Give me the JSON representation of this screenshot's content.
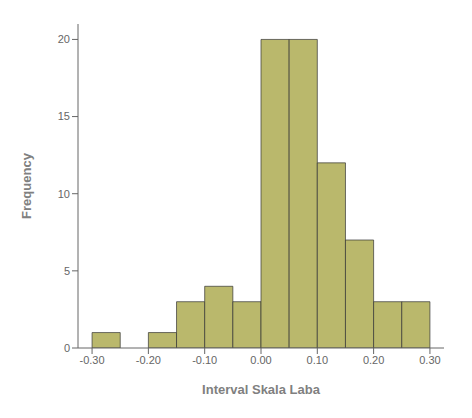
{
  "chart_data": {
    "type": "histogram",
    "xlabel": "Interval Skala Laba",
    "ylabel": "Frequency",
    "bins": [
      -0.3,
      -0.25,
      -0.2,
      -0.15,
      -0.1,
      -0.05,
      0.0,
      0.05,
      0.1,
      0.15,
      0.2,
      0.25,
      0.3
    ],
    "values": [
      1,
      0,
      1,
      3,
      4,
      3,
      20,
      20,
      12,
      7,
      3,
      3
    ],
    "color": "#bab86c",
    "xlim": [
      -0.325,
      0.325
    ],
    "ylim": [
      0,
      21
    ],
    "xticks": [
      {
        "value": -0.3,
        "label": "-0.30"
      },
      {
        "value": -0.2,
        "label": "-0.20"
      },
      {
        "value": -0.1,
        "label": "-0.10"
      },
      {
        "value": 0.0,
        "label": "0.00"
      },
      {
        "value": 0.1,
        "label": "0.10"
      },
      {
        "value": 0.2,
        "label": "0.20"
      },
      {
        "value": 0.3,
        "label": "0.30"
      }
    ],
    "yticks": [
      0,
      5,
      10,
      15,
      20
    ],
    "grid": false
  }
}
